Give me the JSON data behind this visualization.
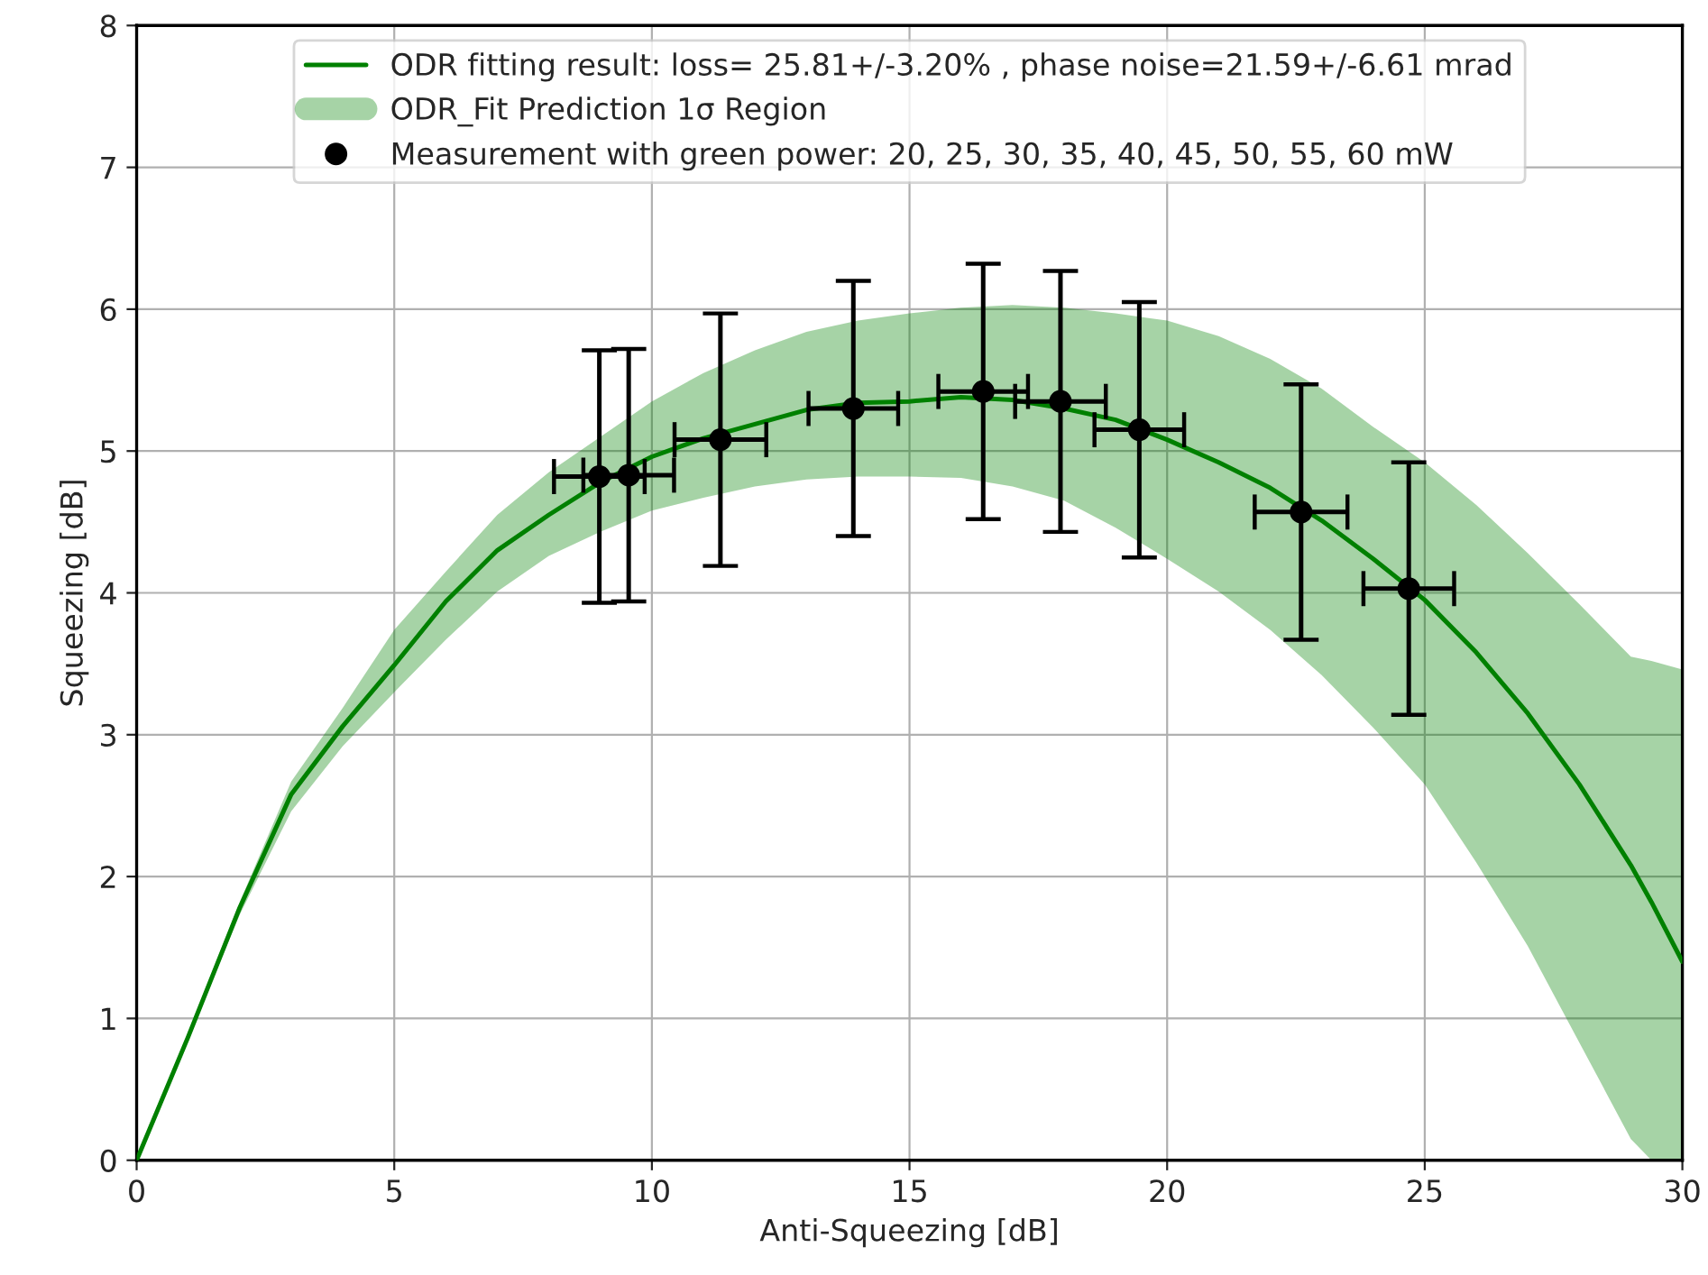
{
  "chart_data": {
    "type": "line",
    "xlabel": "Anti-Squeezing [dB]",
    "ylabel": "Squeezing [dB]",
    "xlim": [
      0,
      30
    ],
    "ylim": [
      0,
      8
    ],
    "xticks": [
      0,
      5,
      10,
      15,
      20,
      25,
      30
    ],
    "yticks": [
      0,
      1,
      2,
      3,
      4,
      5,
      6,
      7,
      8
    ],
    "grid": true,
    "legend": "top",
    "annotations": [
      "ODR_Fit Prediction 1σ Region"
    ],
    "series": [
      {
        "type": "line",
        "name": "ODR fitting result: loss= 25.81+/-3.20% , phase noise=21.59+/-6.61 mrad",
        "color": "#008000",
        "x": [
          0,
          1,
          2,
          3,
          4,
          5,
          6,
          7,
          8,
          9,
          10,
          11,
          12,
          13,
          14,
          15,
          16,
          17,
          18,
          19,
          20,
          21,
          22,
          23,
          24,
          25,
          26,
          27,
          28,
          29,
          29.4,
          30
        ],
        "values": [
          0,
          0.87,
          1.78,
          2.58,
          3.06,
          3.49,
          3.94,
          4.3,
          4.55,
          4.78,
          4.96,
          5.09,
          5.19,
          5.29,
          5.34,
          5.35,
          5.38,
          5.36,
          5.3,
          5.22,
          5.08,
          4.92,
          4.74,
          4.51,
          4.24,
          3.95,
          3.58,
          3.15,
          2.65,
          2.08,
          1.82,
          1.4
        ],
        "lower": [
          0,
          0.86,
          1.73,
          2.46,
          2.92,
          3.3,
          3.67,
          4.01,
          4.26,
          4.43,
          4.58,
          4.67,
          4.75,
          4.8,
          4.82,
          4.82,
          4.81,
          4.75,
          4.65,
          4.46,
          4.24,
          4.01,
          3.74,
          3.42,
          3.05,
          2.65,
          2.1,
          1.51,
          0.83,
          0.15,
          0,
          0
        ],
        "upper": [
          0,
          0.9,
          1.82,
          2.67,
          3.19,
          3.74,
          4.15,
          4.55,
          4.85,
          5.1,
          5.35,
          5.55,
          5.71,
          5.84,
          5.92,
          5.97,
          6.01,
          6.03,
          6.01,
          5.97,
          5.92,
          5.81,
          5.65,
          5.44,
          5.17,
          4.92,
          4.62,
          4.28,
          3.92,
          3.55,
          3.52,
          3.46
        ]
      },
      {
        "type": "scatter",
        "name": "Measurement with green power: 20, 25, 30, 35, 40, 45, 50, 55, 60 mW",
        "color": "#000000",
        "marker": "circle",
        "x": [
          8.98,
          9.55,
          11.33,
          13.91,
          16.43,
          17.93,
          19.46,
          22.6,
          24.69
        ],
        "values": [
          4.82,
          4.83,
          5.08,
          5.3,
          5.42,
          5.35,
          5.15,
          4.57,
          4.03
        ],
        "errors": [
          0.89,
          0.89,
          0.89,
          0.9,
          0.9,
          0.92,
          0.9,
          0.9,
          0.89
        ],
        "xerrors": [
          0.88,
          0.88,
          0.89,
          0.87,
          0.87,
          0.88,
          0.87,
          0.9,
          0.88
        ]
      }
    ]
  }
}
